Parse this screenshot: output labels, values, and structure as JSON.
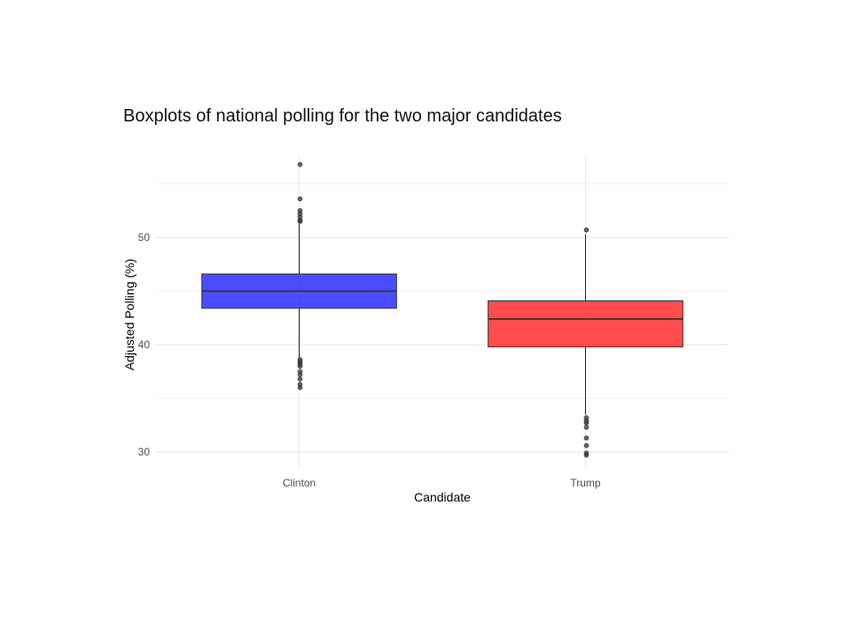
{
  "chart_data": {
    "type": "boxplot",
    "title": "Boxplots of national polling for the two major candidates",
    "xlabel": "Candidate",
    "ylabel": "Adjusted Polling (%)",
    "ylim": [
      28.6,
      57.6
    ],
    "yticks": [
      30,
      40,
      50
    ],
    "grid": true,
    "categories": [
      "Clinton",
      "Trump"
    ],
    "series": [
      {
        "category": "Clinton",
        "color": "#0000FF",
        "q1": 43.4,
        "median": 45.0,
        "q3": 46.6,
        "whisker_low": 38.7,
        "whisker_high": 51.3,
        "outliers": [
          56.8,
          53.6,
          52.5,
          52.2,
          51.9,
          51.6,
          51.5,
          38.6,
          38.4,
          38.2,
          38.0,
          37.5,
          37.2,
          36.8,
          36.3,
          36.0
        ]
      },
      {
        "category": "Trump",
        "color": "#FF0000",
        "q1": 39.8,
        "median": 42.4,
        "q3": 44.1,
        "whisker_low": 33.5,
        "whisker_high": 50.3,
        "outliers": [
          50.7,
          33.2,
          32.9,
          32.7,
          32.3,
          31.3,
          30.6,
          29.9,
          29.7
        ]
      }
    ]
  }
}
